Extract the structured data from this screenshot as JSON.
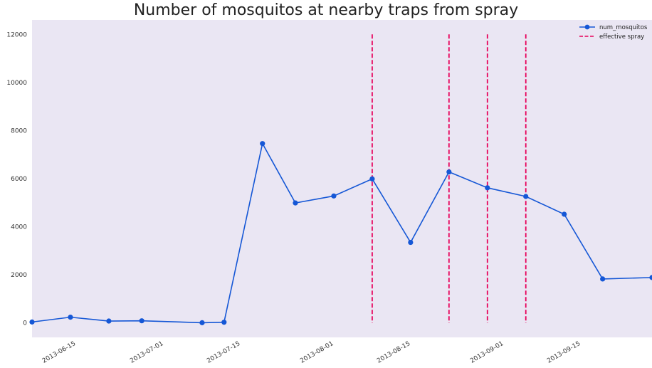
{
  "chart_data": {
    "type": "line",
    "title": "Number of mosquitos at nearby traps from spray",
    "xlabel": "",
    "ylabel": "",
    "x_axis_type": "date",
    "xlim": [
      "2013-06-07",
      "2013-09-28"
    ],
    "ylim": [
      -600,
      12600
    ],
    "xticks": [
      "2013-06-15",
      "2013-07-01",
      "2013-07-15",
      "2013-08-01",
      "2013-08-15",
      "2013-09-01",
      "2013-09-15"
    ],
    "yticks": [
      0,
      2000,
      4000,
      6000,
      8000,
      10000,
      12000
    ],
    "grid": false,
    "legend_position": "top-right",
    "series": [
      {
        "name": "num_mosquitos",
        "color": "#1557d6",
        "marker": "circle",
        "points": [
          {
            "x": "2013-06-07",
            "y": 40
          },
          {
            "x": "2013-06-14",
            "y": 240
          },
          {
            "x": "2013-06-21",
            "y": 80
          },
          {
            "x": "2013-06-27",
            "y": 90
          },
          {
            "x": "2013-07-08",
            "y": 10
          },
          {
            "x": "2013-07-12",
            "y": 30
          },
          {
            "x": "2013-07-19",
            "y": 7460
          },
          {
            "x": "2013-07-25",
            "y": 4990
          },
          {
            "x": "2013-08-01",
            "y": 5280
          },
          {
            "x": "2013-08-08",
            "y": 5990
          },
          {
            "x": "2013-08-15",
            "y": 3350
          },
          {
            "x": "2013-08-22",
            "y": 6280
          },
          {
            "x": "2013-08-29",
            "y": 5620
          },
          {
            "x": "2013-09-05",
            "y": 5260
          },
          {
            "x": "2013-09-12",
            "y": 4520
          },
          {
            "x": "2013-09-19",
            "y": 1830
          },
          {
            "x": "2013-09-28",
            "y": 1890
          }
        ]
      }
    ],
    "vlines": {
      "name": "effective spray",
      "color": "#e8005a",
      "style": "dashed",
      "dates": [
        "2013-08-08",
        "2013-08-22",
        "2013-08-29",
        "2013-09-05"
      ],
      "ymin": 0,
      "ymax": 12000
    },
    "plot_background": "#eae6f3"
  }
}
